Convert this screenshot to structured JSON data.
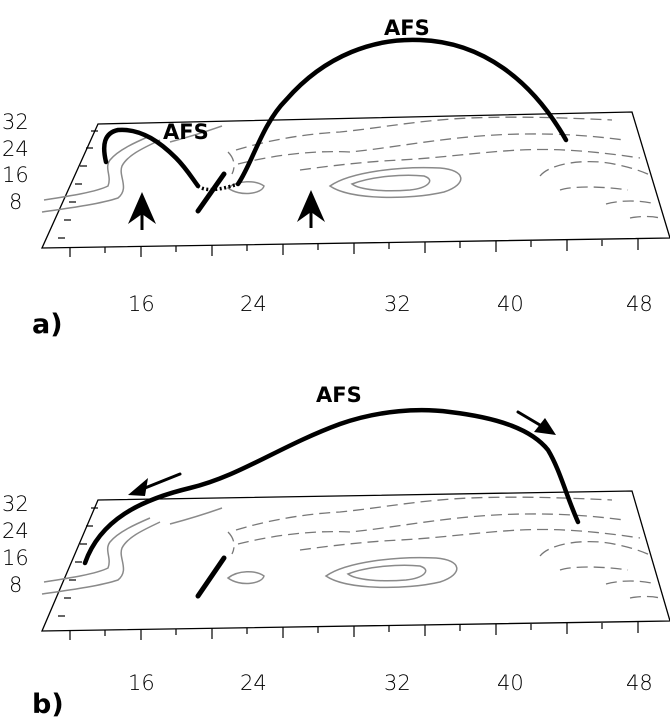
{
  "panels": [
    {
      "label": "a)",
      "afs_labels": [
        "AFS",
        "AFS"
      ],
      "x_ticks": [
        "16",
        "24",
        "32",
        "40",
        "48"
      ],
      "y_ticks": [
        "32",
        "24",
        "16",
        "8"
      ]
    },
    {
      "label": "b)",
      "afs_labels": [
        "AFS"
      ],
      "x_ticks": [
        "16",
        "24",
        "32",
        "40",
        "48"
      ],
      "y_ticks": [
        "32",
        "24",
        "16",
        "8"
      ]
    }
  ]
}
